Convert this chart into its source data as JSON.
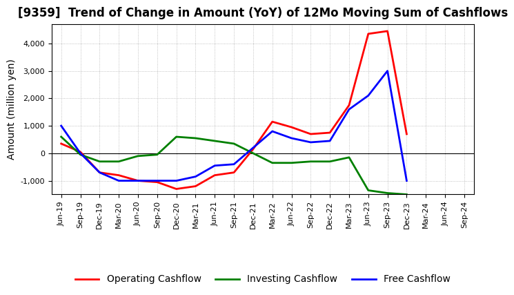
{
  "title": "[9359]  Trend of Change in Amount (YoY) of 12Mo Moving Sum of Cashflows",
  "ylabel": "Amount (million yen)",
  "x_labels": [
    "Jun-19",
    "Sep-19",
    "Dec-19",
    "Mar-20",
    "Jun-20",
    "Sep-20",
    "Dec-20",
    "Mar-21",
    "Jun-21",
    "Sep-21",
    "Dec-21",
    "Mar-22",
    "Jun-22",
    "Sep-22",
    "Dec-22",
    "Mar-23",
    "Jun-23",
    "Sep-23",
    "Dec-23",
    "Mar-24",
    "Jun-24",
    "Sep-24"
  ],
  "operating": [
    350,
    50,
    -700,
    -800,
    -1000,
    -1050,
    -1300,
    -1200,
    -800,
    -700,
    150,
    1150,
    950,
    700,
    750,
    1750,
    4350,
    4450,
    700,
    null,
    null,
    null
  ],
  "investing": [
    600,
    -50,
    -300,
    -300,
    -100,
    -50,
    600,
    550,
    450,
    350,
    0,
    -350,
    -350,
    -300,
    -300,
    -150,
    -1350,
    -1450,
    -1500,
    null,
    null,
    null
  ],
  "free": [
    1000,
    0,
    -700,
    -1000,
    -1000,
    -1000,
    -1000,
    -850,
    -450,
    -400,
    200,
    800,
    550,
    400,
    450,
    1600,
    2100,
    3000,
    -1000,
    null,
    null,
    null
  ],
  "operating_color": "#ff0000",
  "investing_color": "#008000",
  "free_color": "#0000ff",
  "ylim": [
    -1500,
    4700
  ],
  "yticks": [
    -1000,
    0,
    1000,
    2000,
    3000,
    4000
  ],
  "background_color": "#ffffff",
  "grid_color": "#b0b0b0",
  "title_fontsize": 12,
  "axis_label_fontsize": 10,
  "tick_fontsize": 8,
  "legend_fontsize": 10,
  "linewidth": 2.0
}
